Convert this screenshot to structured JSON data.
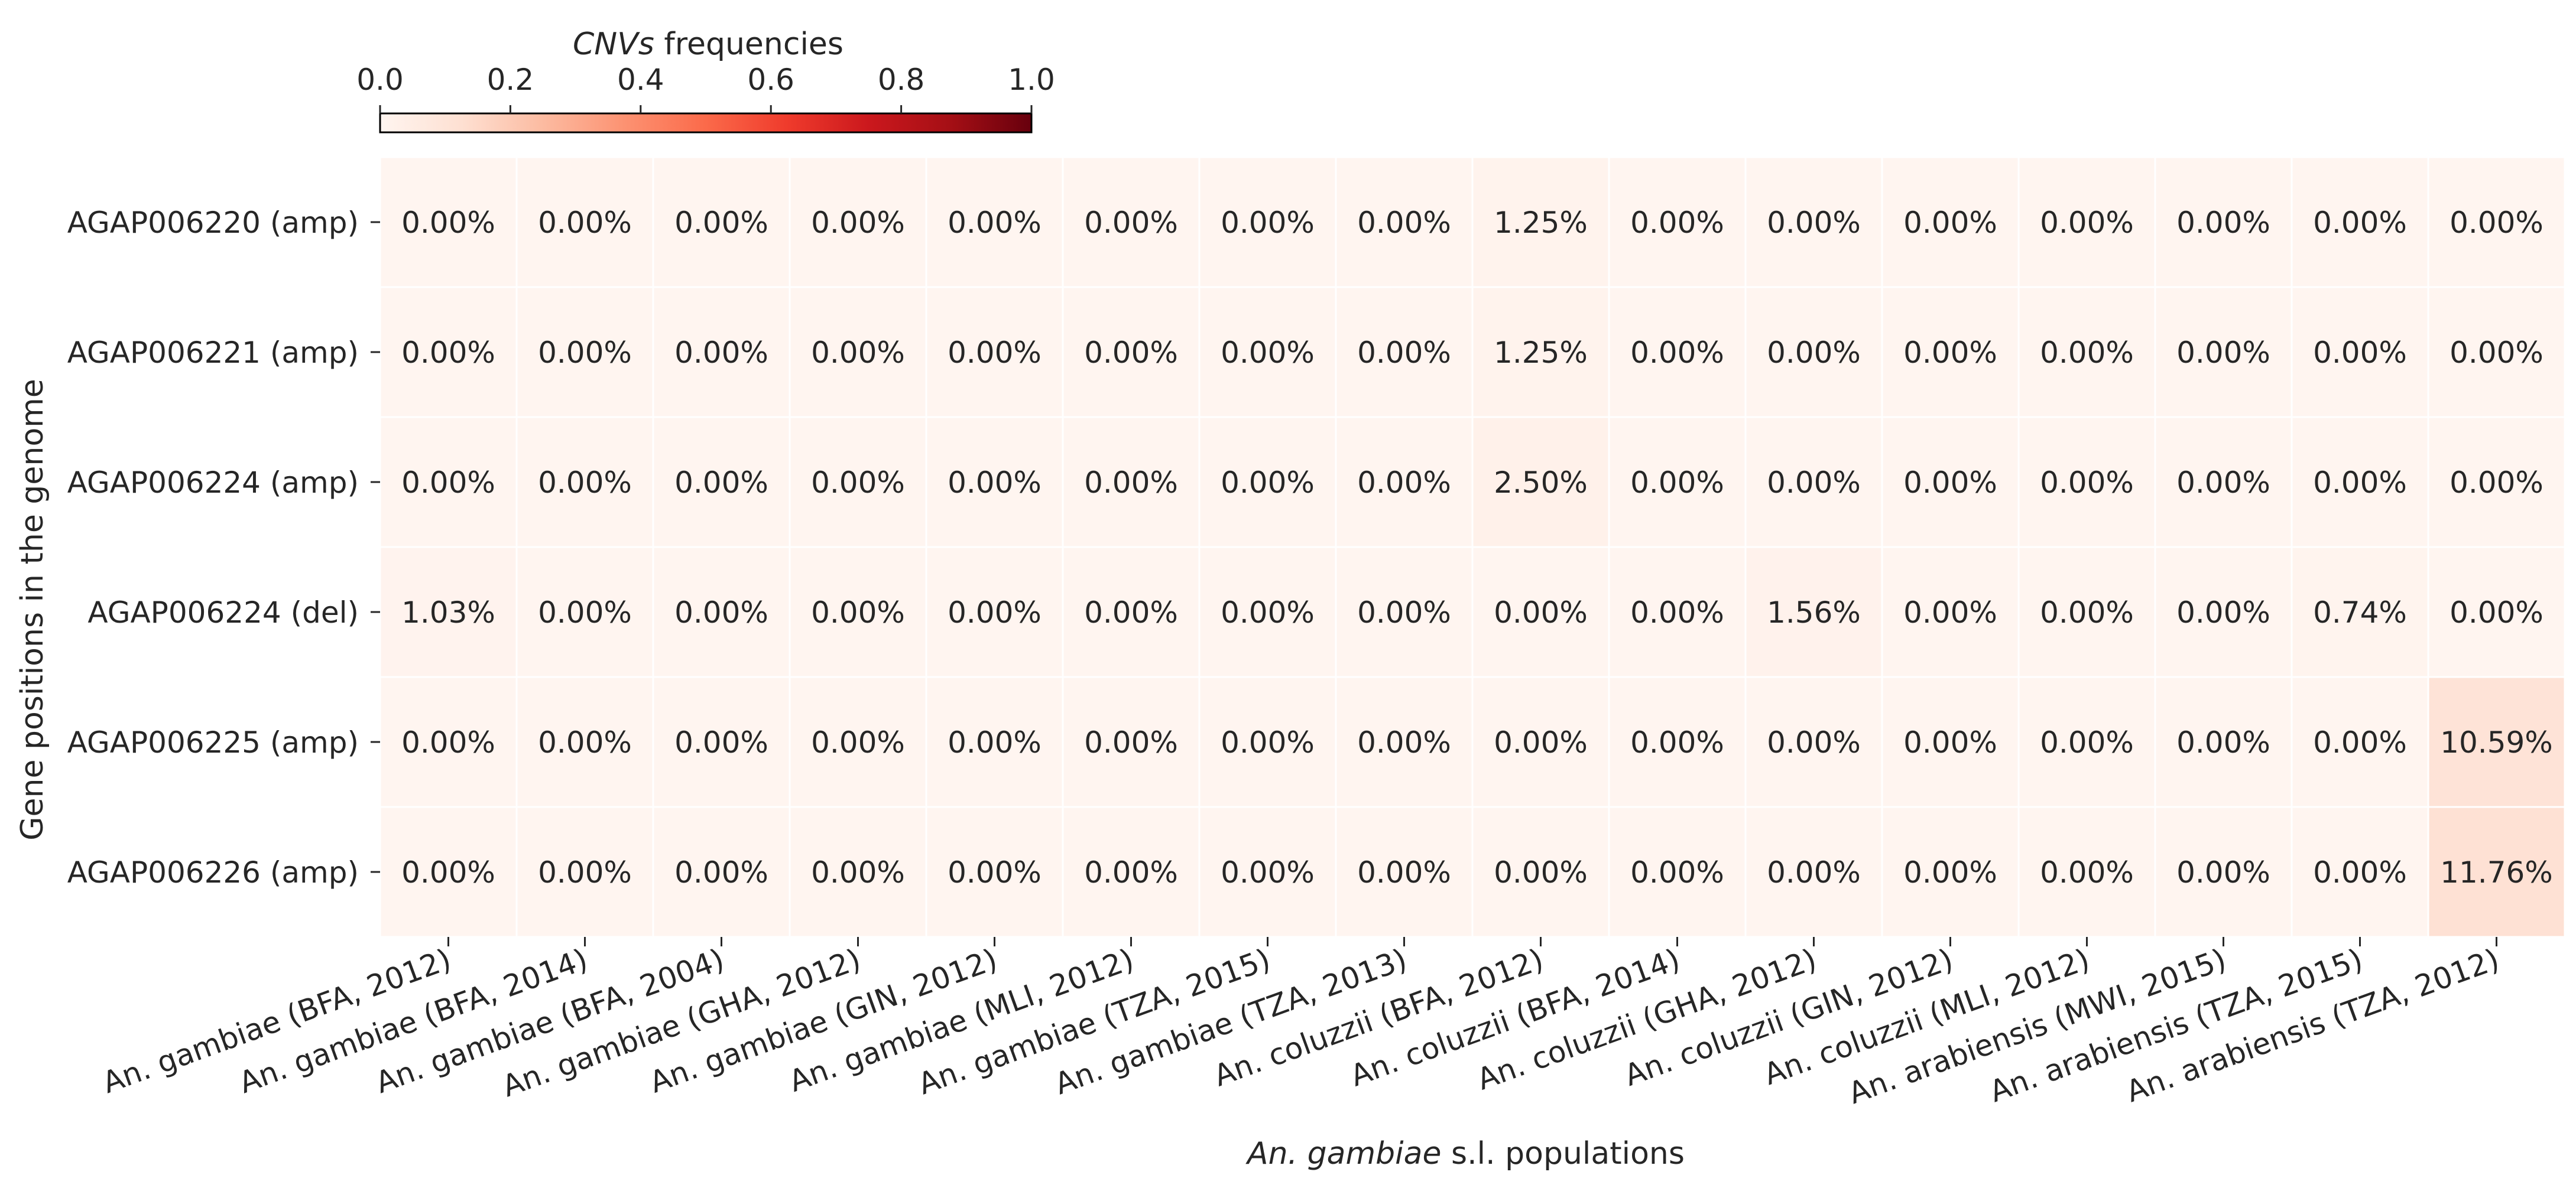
{
  "chart_data": {
    "type": "heatmap",
    "colormap": "Reds",
    "xlabel": {
      "italic_part": "An. gambiae",
      "rest": " s.l. populations"
    },
    "ylabel": "Gene positions in the genome",
    "colorbar": {
      "title_italic": "CNVs",
      "title_rest": " frequencies",
      "min": 0.0,
      "max": 1.0,
      "ticks": [
        "0.0",
        "0.2",
        "0.4",
        "0.6",
        "0.8",
        "1.0"
      ],
      "placement": "top-left"
    },
    "rows": [
      "AGAP006220 (amp)",
      "AGAP006221 (amp)",
      "AGAP006224 (amp)",
      "AGAP006224 (del)",
      "AGAP006225 (amp)",
      "AGAP006226 (amp)"
    ],
    "columns": [
      "An. gambiae (BFA, 2012)",
      "An. gambiae (BFA, 2014)",
      "An. gambiae (BFA, 2004)",
      "An. gambiae (GHA, 2012)",
      "An. gambiae (GIN, 2012)",
      "An. gambiae (MLI, 2012)",
      "An. gambiae (TZA, 2015)",
      "An. gambiae (TZA, 2013)",
      "An. coluzzii (BFA, 2012)",
      "An. coluzzii (BFA, 2014)",
      "An. coluzzii (GHA, 2012)",
      "An. coluzzii (GIN, 2012)",
      "An. coluzzii (MLI, 2012)",
      "An. arabiensis (MWI, 2015)",
      "An. arabiensis (TZA, 2015)",
      "An. arabiensis (TZA, 2012)"
    ],
    "values": [
      [
        0.0,
        0.0,
        0.0,
        0.0,
        0.0,
        0.0,
        0.0,
        0.0,
        0.0125,
        0.0,
        0.0,
        0.0,
        0.0,
        0.0,
        0.0,
        0.0
      ],
      [
        0.0,
        0.0,
        0.0,
        0.0,
        0.0,
        0.0,
        0.0,
        0.0,
        0.0125,
        0.0,
        0.0,
        0.0,
        0.0,
        0.0,
        0.0,
        0.0
      ],
      [
        0.0,
        0.0,
        0.0,
        0.0,
        0.0,
        0.0,
        0.0,
        0.0,
        0.025,
        0.0,
        0.0,
        0.0,
        0.0,
        0.0,
        0.0,
        0.0
      ],
      [
        0.0103,
        0.0,
        0.0,
        0.0,
        0.0,
        0.0,
        0.0,
        0.0,
        0.0,
        0.0,
        0.0156,
        0.0,
        0.0,
        0.0,
        0.0074,
        0.0
      ],
      [
        0.0,
        0.0,
        0.0,
        0.0,
        0.0,
        0.0,
        0.0,
        0.0,
        0.0,
        0.0,
        0.0,
        0.0,
        0.0,
        0.0,
        0.0,
        0.1059
      ],
      [
        0.0,
        0.0,
        0.0,
        0.0,
        0.0,
        0.0,
        0.0,
        0.0,
        0.0,
        0.0,
        0.0,
        0.0,
        0.0,
        0.0,
        0.0,
        0.1176
      ]
    ],
    "cell_labels": [
      [
        "0.00%",
        "0.00%",
        "0.00%",
        "0.00%",
        "0.00%",
        "0.00%",
        "0.00%",
        "0.00%",
        "1.25%",
        "0.00%",
        "0.00%",
        "0.00%",
        "0.00%",
        "0.00%",
        "0.00%",
        "0.00%"
      ],
      [
        "0.00%",
        "0.00%",
        "0.00%",
        "0.00%",
        "0.00%",
        "0.00%",
        "0.00%",
        "0.00%",
        "1.25%",
        "0.00%",
        "0.00%",
        "0.00%",
        "0.00%",
        "0.00%",
        "0.00%",
        "0.00%"
      ],
      [
        "0.00%",
        "0.00%",
        "0.00%",
        "0.00%",
        "0.00%",
        "0.00%",
        "0.00%",
        "0.00%",
        "2.50%",
        "0.00%",
        "0.00%",
        "0.00%",
        "0.00%",
        "0.00%",
        "0.00%",
        "0.00%"
      ],
      [
        "1.03%",
        "0.00%",
        "0.00%",
        "0.00%",
        "0.00%",
        "0.00%",
        "0.00%",
        "0.00%",
        "0.00%",
        "0.00%",
        "1.56%",
        "0.00%",
        "0.00%",
        "0.00%",
        "0.74%",
        "0.00%"
      ],
      [
        "0.00%",
        "0.00%",
        "0.00%",
        "0.00%",
        "0.00%",
        "0.00%",
        "0.00%",
        "0.00%",
        "0.00%",
        "0.00%",
        "0.00%",
        "0.00%",
        "0.00%",
        "0.00%",
        "0.00%",
        "10.59%"
      ],
      [
        "0.00%",
        "0.00%",
        "0.00%",
        "0.00%",
        "0.00%",
        "0.00%",
        "0.00%",
        "0.00%",
        "0.00%",
        "0.00%",
        "0.00%",
        "0.00%",
        "0.00%",
        "0.00%",
        "0.00%",
        "11.76%"
      ]
    ]
  }
}
